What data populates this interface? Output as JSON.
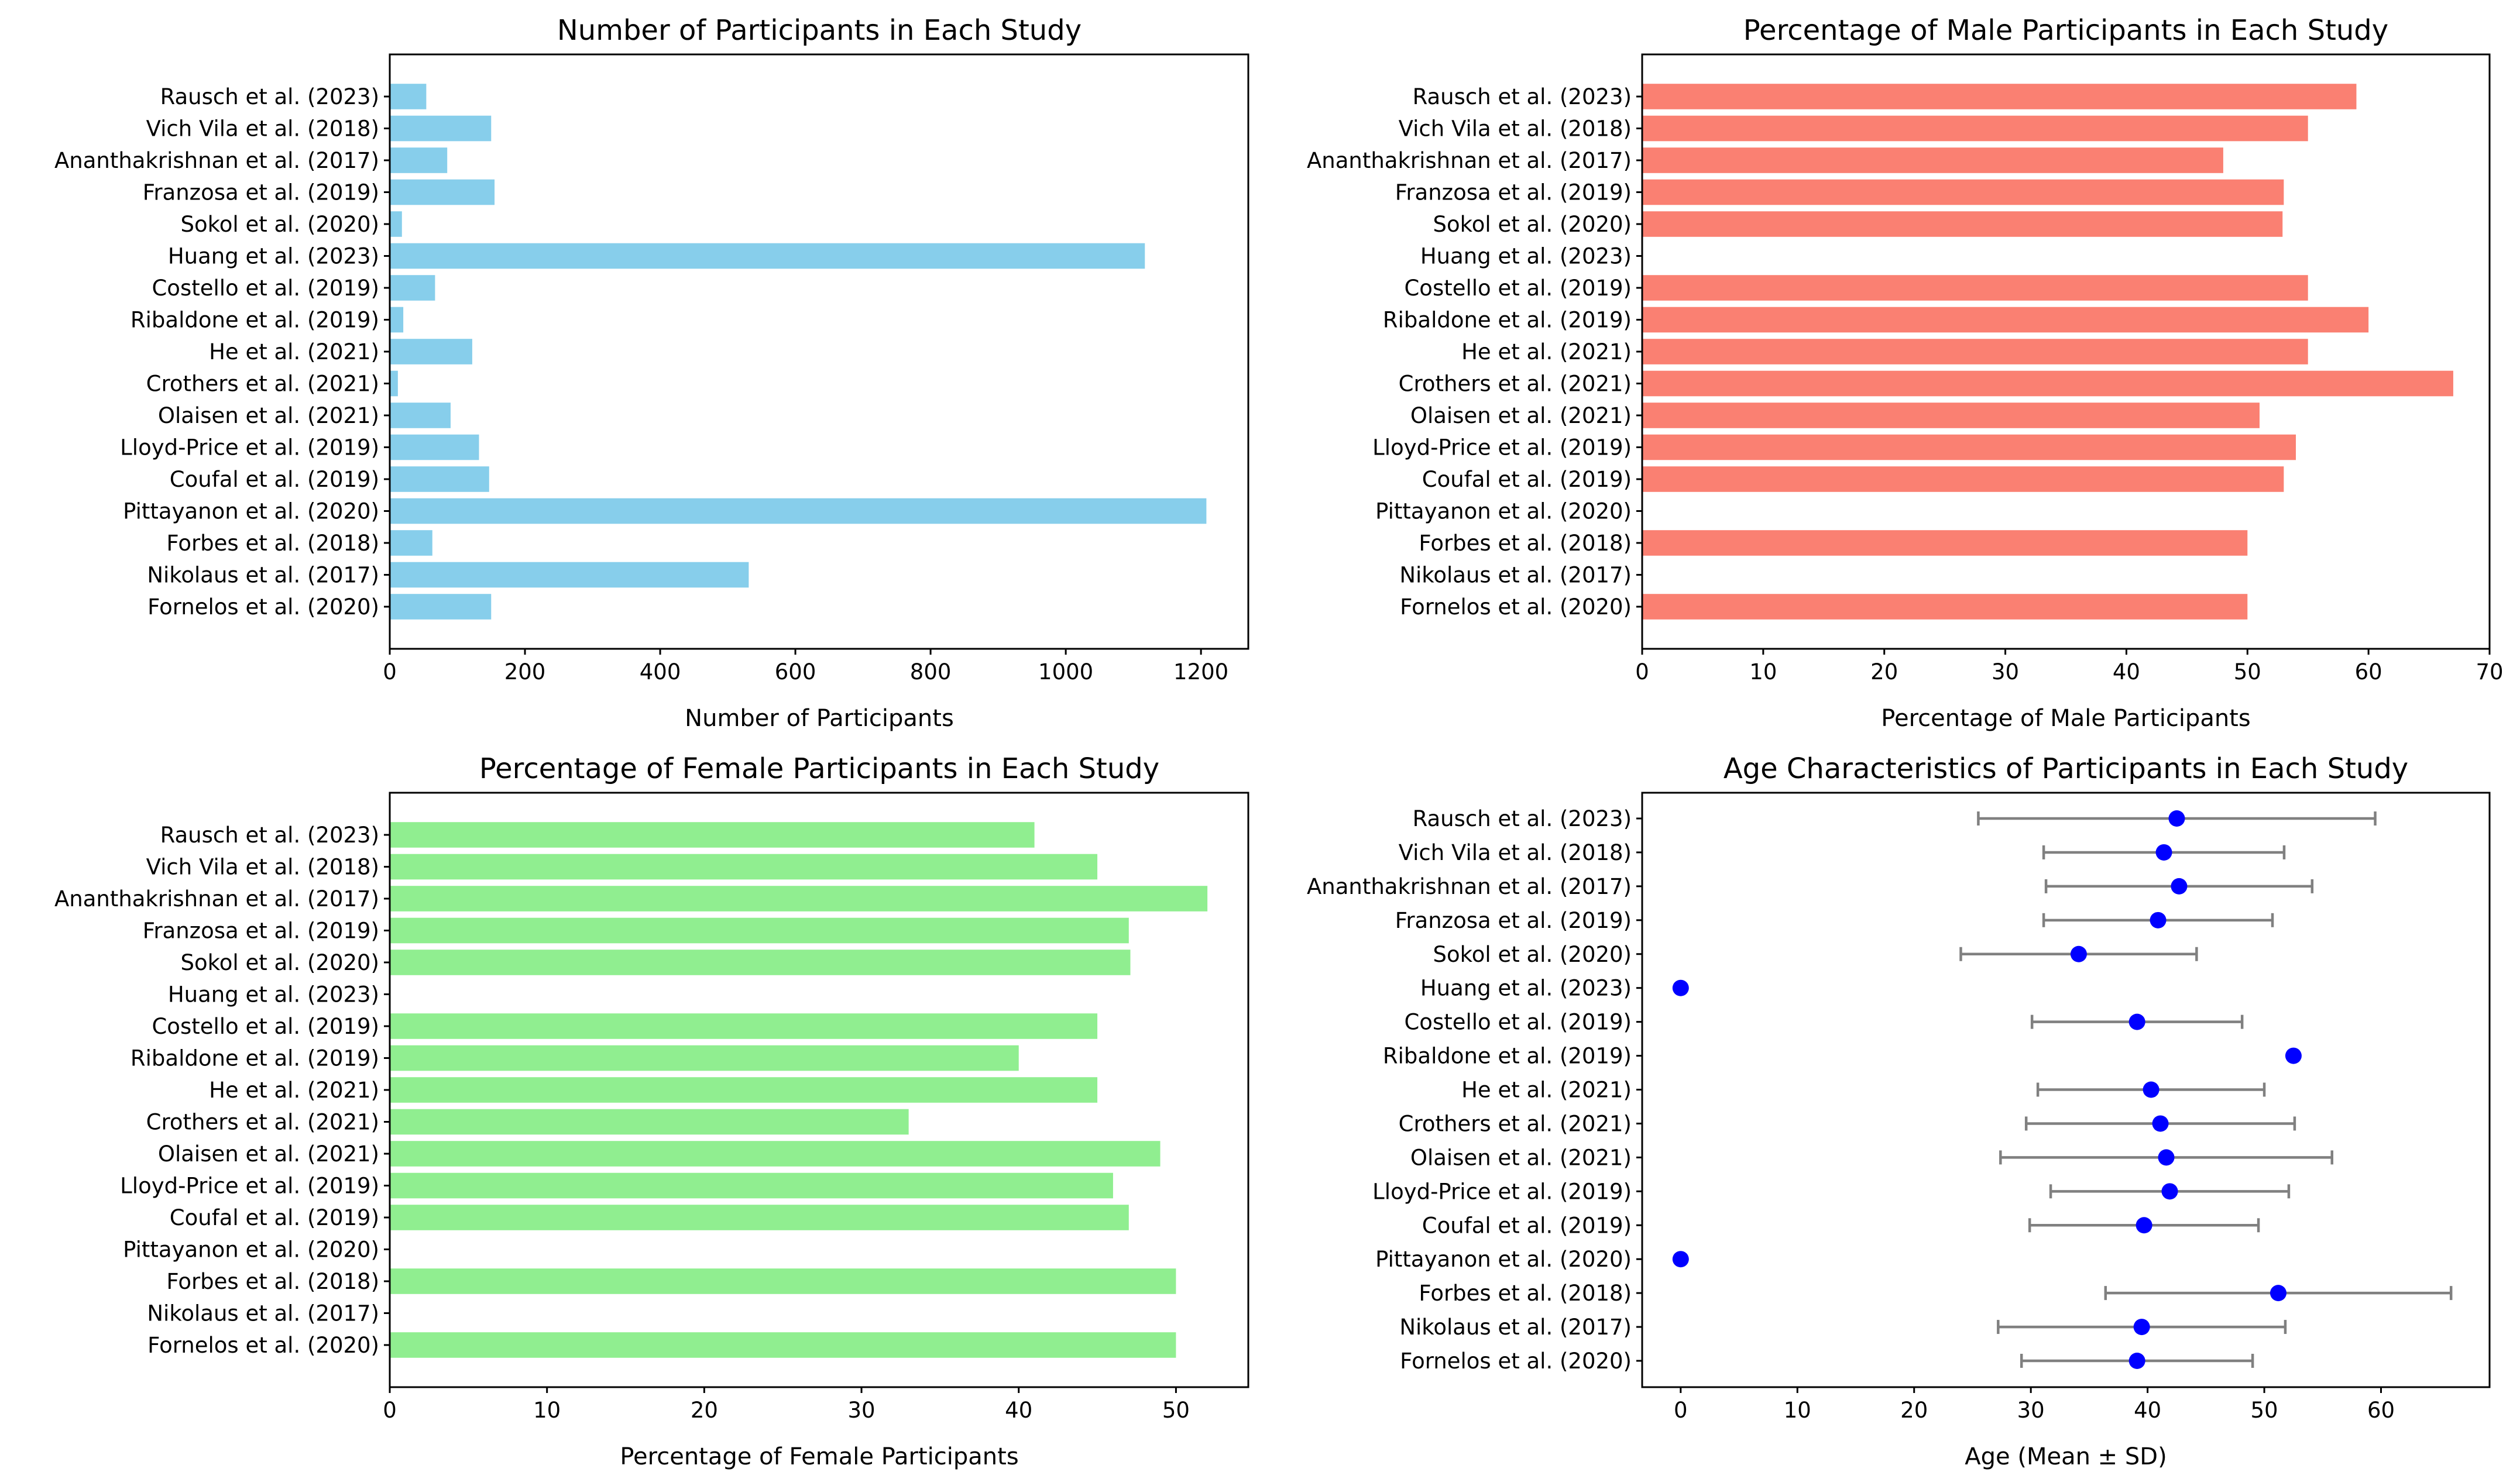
{
  "chart_data": [
    {
      "type": "bar",
      "orientation": "horizontal",
      "title": "Number of Participants in Each Study",
      "xlabel": "Number of Participants",
      "ylabel": "",
      "xlim": [
        0,
        1270
      ],
      "xticks": [
        0,
        200,
        400,
        600,
        800,
        1000,
        1200
      ],
      "color": "#87CEEB",
      "categories": [
        "Rausch et al. (2023)",
        "Vich Vila et al. (2018)",
        "Ananthakrishnan et al. (2017)",
        "Franzosa et al. (2019)",
        "Sokol et al. (2020)",
        "Huang et al. (2023)",
        "Costello et al. (2019)",
        "Ribaldone et al. (2019)",
        "He et al. (2021)",
        "Crothers et al. (2021)",
        "Olaisen et al. (2021)",
        "Lloyd-Price et al. (2019)",
        "Coufal et al. (2019)",
        "Pittayanon et al. (2020)",
        "Forbes et al. (2018)",
        "Nikolaus et al. (2017)",
        "Fornelos et al. (2020)"
      ],
      "values": [
        54,
        150,
        85,
        155,
        18,
        1117,
        67,
        20,
        122,
        12,
        90,
        132,
        147,
        1208,
        63,
        531,
        150
      ]
    },
    {
      "type": "bar",
      "orientation": "horizontal",
      "title": "Percentage of Male Participants in Each Study",
      "xlabel": "Percentage of Male Participants",
      "ylabel": "",
      "xlim": [
        0,
        70
      ],
      "xticks": [
        0,
        10,
        20,
        30,
        40,
        50,
        60,
        70
      ],
      "color": "#FA8072",
      "categories": [
        "Rausch et al. (2023)",
        "Vich Vila et al. (2018)",
        "Ananthakrishnan et al. (2017)",
        "Franzosa et al. (2019)",
        "Sokol et al. (2020)",
        "Huang et al. (2023)",
        "Costello et al. (2019)",
        "Ribaldone et al. (2019)",
        "He et al. (2021)",
        "Crothers et al. (2021)",
        "Olaisen et al. (2021)",
        "Lloyd-Price et al. (2019)",
        "Coufal et al. (2019)",
        "Pittayanon et al. (2020)",
        "Forbes et al. (2018)",
        "Nikolaus et al. (2017)",
        "Fornelos et al. (2020)"
      ],
      "values": [
        59,
        55,
        48,
        53,
        52.9,
        0,
        55,
        60,
        55,
        67,
        51,
        54,
        53,
        0,
        50,
        0,
        50
      ]
    },
    {
      "type": "bar",
      "orientation": "horizontal",
      "title": "Percentage of Female Participants in Each Study",
      "xlabel": "Percentage of Female Participants",
      "ylabel": "",
      "xlim": [
        0,
        54.6
      ],
      "xticks": [
        0,
        10,
        20,
        30,
        40,
        50
      ],
      "color": "#90EE90",
      "categories": [
        "Rausch et al. (2023)",
        "Vich Vila et al. (2018)",
        "Ananthakrishnan et al. (2017)",
        "Franzosa et al. (2019)",
        "Sokol et al. (2020)",
        "Huang et al. (2023)",
        "Costello et al. (2019)",
        "Ribaldone et al. (2019)",
        "He et al. (2021)",
        "Crothers et al. (2021)",
        "Olaisen et al. (2021)",
        "Lloyd-Price et al. (2019)",
        "Coufal et al. (2019)",
        "Pittayanon et al. (2020)",
        "Forbes et al. (2018)",
        "Nikolaus et al. (2017)",
        "Fornelos et al. (2020)"
      ],
      "values": [
        41,
        45,
        52,
        47,
        47.1,
        0,
        45,
        40,
        45,
        33,
        49,
        46,
        47,
        0,
        50,
        0,
        50
      ]
    },
    {
      "type": "scatter",
      "subtype": "errorbar",
      "title": "Age Characteristics of Participants in Each Study",
      "xlabel": "Age (Mean ± SD)",
      "ylabel": "",
      "xlim": [
        -3.3,
        69.3
      ],
      "xticks": [
        0,
        10,
        20,
        30,
        40,
        50,
        60
      ],
      "marker_color": "#0000FF",
      "errorbar_color": "#808080",
      "categories": [
        "Rausch et al. (2023)",
        "Vich Vila et al. (2018)",
        "Ananthakrishnan et al. (2017)",
        "Franzosa et al. (2019)",
        "Sokol et al. (2020)",
        "Huang et al. (2023)",
        "Costello et al. (2019)",
        "Ribaldone et al. (2019)",
        "He et al. (2021)",
        "Crothers et al. (2021)",
        "Olaisen et al. (2021)",
        "Lloyd-Price et al. (2019)",
        "Coufal et al. (2019)",
        "Pittayanon et al. (2020)",
        "Forbes et al. (2018)",
        "Nikolaus et al. (2017)",
        "Fornelos et al. (2020)"
      ],
      "mean": [
        42.5,
        41.4,
        42.7,
        40.9,
        34.1,
        0,
        39.1,
        52.5,
        40.3,
        41.1,
        41.6,
        41.9,
        39.7,
        0,
        51.2,
        39.5,
        39.1
      ],
      "sd": [
        17,
        10.3,
        11.4,
        9.8,
        10.1,
        0,
        9,
        0,
        9.7,
        11.5,
        14.2,
        10.2,
        9.8,
        0,
        14.8,
        12.3,
        9.9
      ]
    }
  ]
}
